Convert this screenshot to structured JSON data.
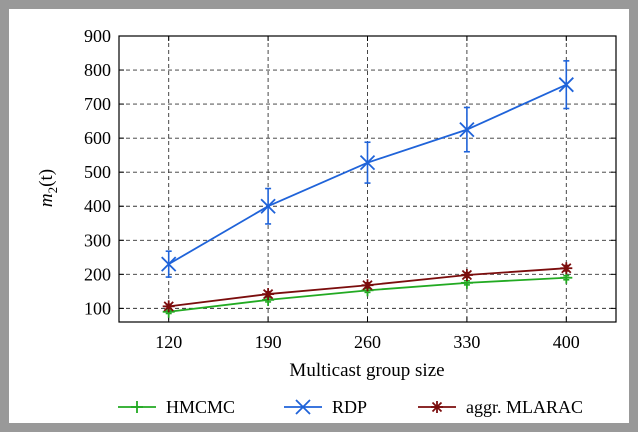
{
  "chart_data": {
    "type": "line",
    "xlabel": "Multicast group size",
    "ylabel": "m",
    "ylabel_sub": "2",
    "ylabel_suffix": "(t)",
    "categories": [
      "120",
      "190",
      "260",
      "330",
      "400"
    ],
    "x": [
      120,
      190,
      260,
      330,
      400
    ],
    "yticks": [
      100,
      200,
      300,
      400,
      500,
      600,
      700,
      800,
      900
    ],
    "ylim": [
      60,
      900
    ],
    "xlim": [
      85,
      435
    ],
    "grid": true,
    "legend_position": "bottom",
    "series": [
      {
        "name": "HMCMC",
        "color": "#22aa22",
        "marker": "plus",
        "values": [
          90,
          125,
          153,
          175,
          190
        ],
        "errors": [
          5,
          6,
          6,
          6,
          6
        ]
      },
      {
        "name": "RDP",
        "color": "#1f63d9",
        "marker": "x",
        "values": [
          230,
          400,
          528,
          625,
          757
        ],
        "errors": [
          38,
          52,
          60,
          65,
          70
        ]
      },
      {
        "name": "aggr. MLARAC",
        "color": "#7b0d0d",
        "marker": "star",
        "values": [
          106,
          142,
          168,
          198,
          218
        ],
        "errors": [
          6,
          7,
          7,
          7,
          8
        ]
      }
    ]
  }
}
